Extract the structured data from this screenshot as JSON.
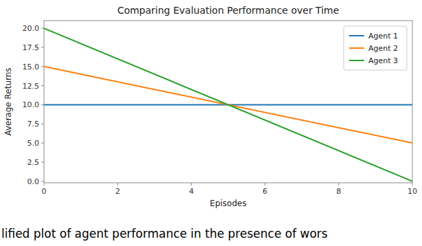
{
  "chart_data": {
    "type": "line",
    "title": "Comparing Evaluation Performance over Time",
    "x_label": "Episodes",
    "y_label": "Average Returns",
    "caption": "lified plot of agent performance in the presence of wors",
    "x": [
      0,
      10
    ],
    "series": [
      {
        "name": "Agent 1",
        "color": "#1f77b4",
        "values": [
          10,
          10
        ]
      },
      {
        "name": "Agent 2",
        "color": "#ff7f0e",
        "values": [
          15,
          5
        ]
      },
      {
        "name": "Agent 3",
        "color": "#2ca02c",
        "values": [
          20,
          0
        ]
      }
    ],
    "xlim": [
      0,
      10
    ],
    "ylim": [
      -0.2,
      21
    ],
    "xticks": [
      0,
      2,
      4,
      6,
      8,
      10
    ],
    "yticks": [
      {
        "value": 0,
        "label": "0.0"
      },
      2.5,
      {
        "value": 5,
        "label": "5.0"
      },
      7.5,
      {
        "value": 10,
        "label": "10.0"
      },
      12.5,
      {
        "value": 15,
        "label": "15.0"
      },
      17.5,
      {
        "value": 20,
        "label": "20.0"
      }
    ],
    "grid": false,
    "legend": "upper right"
  }
}
